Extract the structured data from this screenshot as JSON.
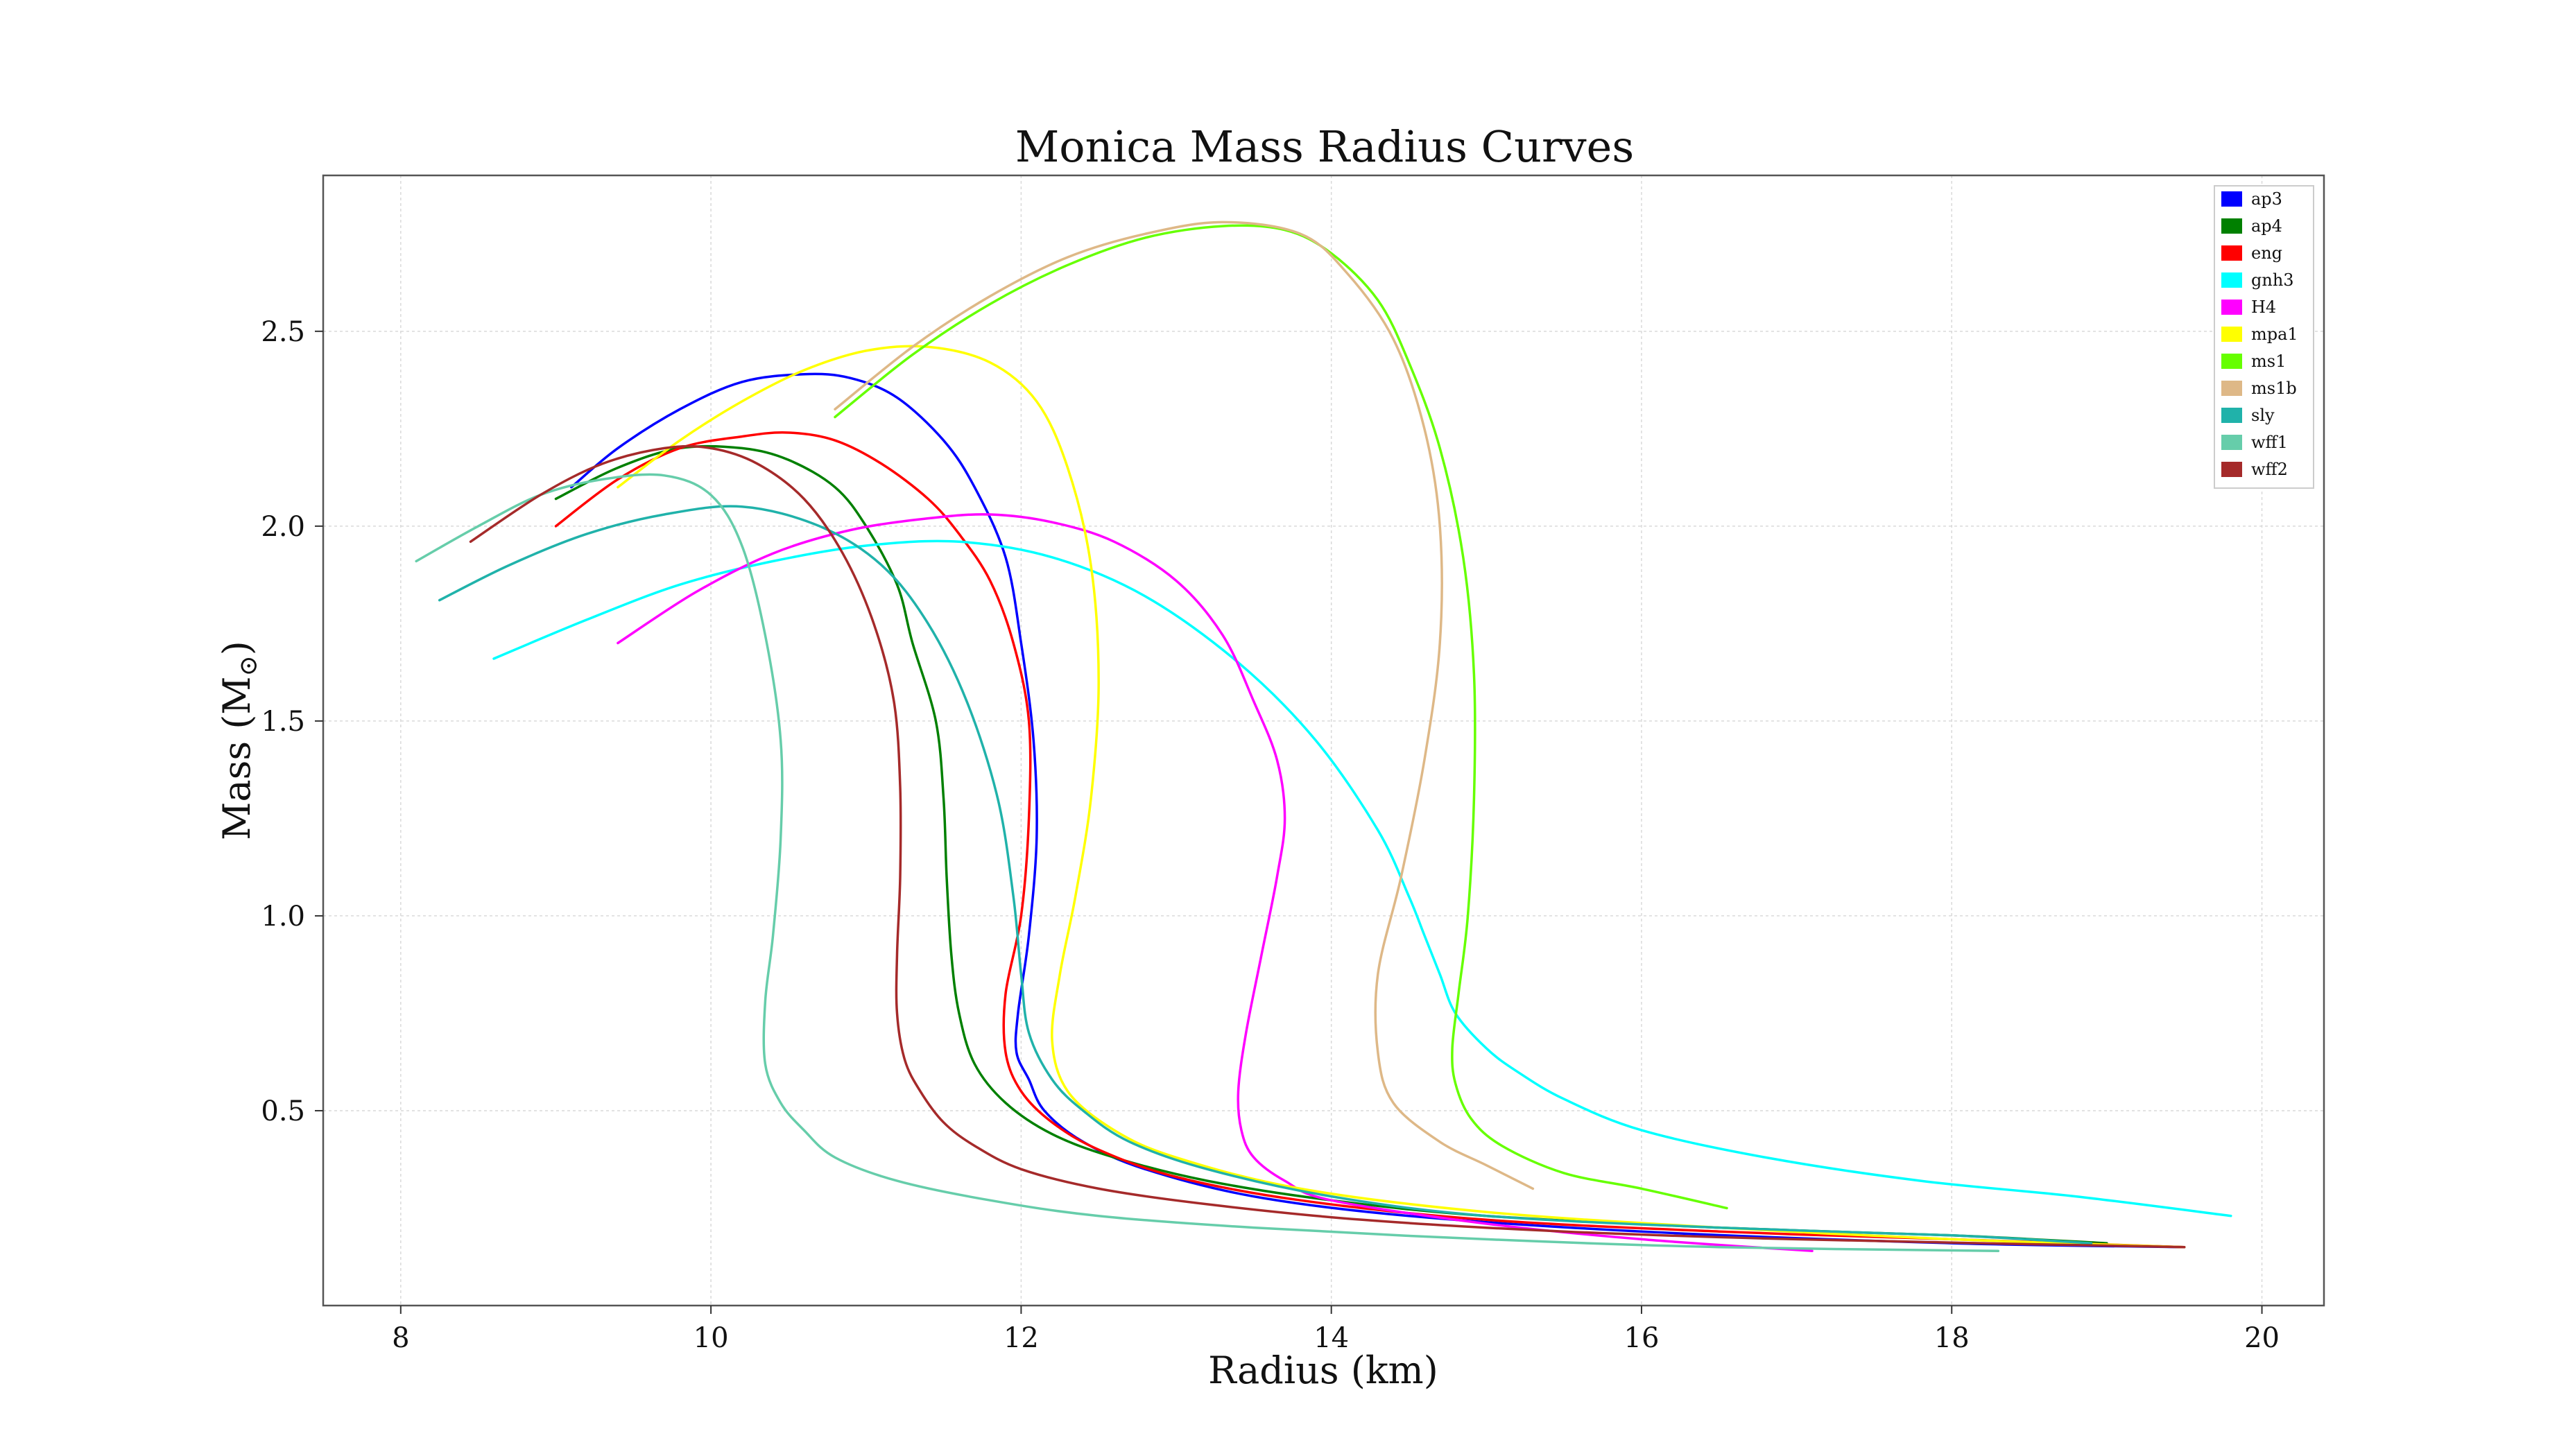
{
  "chart_data": {
    "type": "line",
    "title": "Monica Mass Radius Curves",
    "xlabel": "Radius (km)",
    "ylabel": "Mass (M",
    "ylabel_sub": "⊙",
    "ylabel_close": ")",
    "xlim": [
      7.5,
      20.4
    ],
    "ylim": [
      0.0,
      2.9
    ],
    "xticks": [
      8,
      10,
      12,
      14,
      16,
      18,
      20
    ],
    "yticks": [
      0.5,
      1.0,
      1.5,
      2.0,
      2.5
    ],
    "grid": true,
    "legend_position": "top-right",
    "series": [
      {
        "name": "ap3",
        "color": "#0000ff",
        "x": [
          9.1,
          9.4,
          9.8,
          10.2,
          10.6,
          10.9,
          11.2,
          11.5,
          11.7,
          11.9,
          12.0,
          12.08,
          12.1,
          12.05,
          11.98,
          11.97,
          12.05,
          12.15,
          12.4,
          12.8,
          13.5,
          14.5,
          16.0,
          18.0,
          19.5
        ],
        "y": [
          2.1,
          2.2,
          2.3,
          2.37,
          2.39,
          2.38,
          2.33,
          2.22,
          2.1,
          1.92,
          1.7,
          1.45,
          1.2,
          0.95,
          0.75,
          0.65,
          0.58,
          0.5,
          0.42,
          0.35,
          0.28,
          0.23,
          0.19,
          0.16,
          0.15
        ]
      },
      {
        "name": "ap4",
        "color": "#008000",
        "x": [
          9.0,
          9.4,
          9.8,
          10.2,
          10.5,
          10.8,
          11.0,
          11.2,
          11.3,
          11.45,
          11.5,
          11.52,
          11.55,
          11.6,
          11.7,
          11.9,
          12.2,
          12.6,
          13.2,
          14.0,
          15.0,
          16.5,
          18.0,
          19.0
        ],
        "y": [
          2.07,
          2.15,
          2.2,
          2.2,
          2.17,
          2.1,
          2.0,
          1.85,
          1.7,
          1.5,
          1.3,
          1.1,
          0.9,
          0.75,
          0.62,
          0.52,
          0.44,
          0.38,
          0.32,
          0.27,
          0.23,
          0.2,
          0.18,
          0.16
        ]
      },
      {
        "name": "eng",
        "color": "#ff0000",
        "x": [
          9.0,
          9.4,
          9.8,
          10.2,
          10.5,
          10.8,
          11.1,
          11.4,
          11.6,
          11.8,
          11.95,
          12.05,
          12.05,
          12.0,
          11.9,
          11.9,
          12.0,
          12.2,
          12.5,
          13.0,
          13.8,
          15.0,
          16.5,
          18.0,
          19.5
        ],
        "y": [
          2.0,
          2.12,
          2.2,
          2.23,
          2.24,
          2.22,
          2.16,
          2.07,
          1.98,
          1.86,
          1.7,
          1.5,
          1.25,
          1.0,
          0.8,
          0.65,
          0.55,
          0.47,
          0.4,
          0.33,
          0.27,
          0.22,
          0.19,
          0.17,
          0.15
        ]
      },
      {
        "name": "gnh3",
        "color": "#00ffff",
        "x": [
          8.6,
          9.2,
          9.8,
          10.4,
          11.0,
          11.6,
          12.2,
          12.8,
          13.4,
          13.9,
          14.3,
          14.5,
          14.6,
          14.7,
          14.8,
          15.0,
          15.2,
          15.5,
          16.0,
          16.8,
          17.8,
          18.8,
          19.8
        ],
        "y": [
          1.66,
          1.76,
          1.85,
          1.91,
          1.95,
          1.96,
          1.92,
          1.82,
          1.65,
          1.45,
          1.22,
          1.05,
          0.95,
          0.85,
          0.75,
          0.66,
          0.6,
          0.53,
          0.45,
          0.38,
          0.32,
          0.28,
          0.23
        ]
      },
      {
        "name": "H4",
        "color": "#ff00ff",
        "x": [
          9.4,
          9.9,
          10.4,
          10.9,
          11.4,
          11.8,
          12.2,
          12.6,
          13.0,
          13.3,
          13.5,
          13.65,
          13.7,
          13.65,
          13.55,
          13.45,
          13.4,
          13.42,
          13.5,
          13.7,
          14.0,
          15.0,
          16.0,
          17.1
        ],
        "y": [
          1.7,
          1.83,
          1.93,
          1.99,
          2.02,
          2.03,
          2.01,
          1.96,
          1.86,
          1.72,
          1.55,
          1.4,
          1.25,
          1.1,
          0.9,
          0.7,
          0.55,
          0.45,
          0.38,
          0.32,
          0.27,
          0.21,
          0.17,
          0.14
        ]
      },
      {
        "name": "mpa1",
        "color": "#ffff00",
        "x": [
          9.4,
          9.8,
          10.2,
          10.6,
          11.0,
          11.4,
          11.8,
          12.1,
          12.3,
          12.45,
          12.5,
          12.45,
          12.35,
          12.25,
          12.2,
          12.3,
          12.6,
          13.0,
          13.8,
          15.0,
          16.5,
          18.0,
          19.5
        ],
        "y": [
          2.1,
          2.22,
          2.32,
          2.4,
          2.45,
          2.46,
          2.42,
          2.32,
          2.15,
          1.9,
          1.6,
          1.3,
          1.05,
          0.85,
          0.68,
          0.55,
          0.45,
          0.38,
          0.3,
          0.24,
          0.2,
          0.17,
          0.15
        ]
      },
      {
        "name": "ms1",
        "color": "#66ff00",
        "x": [
          10.8,
          11.3,
          11.8,
          12.3,
          12.8,
          13.3,
          13.7,
          14.0,
          14.3,
          14.5,
          14.7,
          14.85,
          14.92,
          14.92,
          14.88,
          14.82,
          14.78,
          14.8,
          14.9,
          15.1,
          15.5,
          16.0,
          16.55
        ],
        "y": [
          2.28,
          2.44,
          2.57,
          2.67,
          2.74,
          2.77,
          2.76,
          2.7,
          2.58,
          2.42,
          2.2,
          1.92,
          1.62,
          1.3,
          1.0,
          0.8,
          0.66,
          0.57,
          0.48,
          0.41,
          0.34,
          0.3,
          0.25
        ]
      },
      {
        "name": "ms1b",
        "color": "#deb887",
        "x": [
          10.8,
          11.3,
          11.8,
          12.3,
          12.8,
          13.3,
          13.8,
          14.1,
          14.4,
          14.6,
          14.7,
          14.7,
          14.6,
          14.45,
          14.3,
          14.3,
          14.4,
          14.7,
          15.0,
          15.3
        ],
        "y": [
          2.3,
          2.46,
          2.59,
          2.69,
          2.75,
          2.78,
          2.75,
          2.65,
          2.48,
          2.25,
          2.0,
          1.7,
          1.4,
          1.1,
          0.85,
          0.65,
          0.52,
          0.42,
          0.36,
          0.3
        ]
      },
      {
        "name": "sly",
        "color": "#20b2aa",
        "x": [
          8.25,
          8.7,
          9.2,
          9.7,
          10.2,
          10.7,
          11.1,
          11.4,
          11.65,
          11.85,
          11.95,
          12.0,
          12.05,
          12.2,
          12.4,
          12.7,
          13.2,
          14.0,
          15.0,
          16.5,
          18.0,
          18.9
        ],
        "y": [
          1.81,
          1.9,
          1.98,
          2.03,
          2.05,
          2.0,
          1.9,
          1.75,
          1.55,
          1.3,
          1.05,
          0.85,
          0.7,
          0.58,
          0.5,
          0.42,
          0.35,
          0.28,
          0.23,
          0.2,
          0.18,
          0.16
        ]
      },
      {
        "name": "wff1",
        "color": "#66cdaa",
        "x": [
          8.1,
          8.5,
          8.9,
          9.3,
          9.7,
          10.0,
          10.2,
          10.35,
          10.45,
          10.45,
          10.4,
          10.35,
          10.35,
          10.45,
          10.6,
          10.8,
          11.2,
          11.8,
          12.5,
          13.5,
          15.0,
          16.5,
          18.3
        ],
        "y": [
          1.91,
          2.0,
          2.08,
          2.12,
          2.13,
          2.08,
          1.95,
          1.72,
          1.45,
          1.2,
          0.95,
          0.78,
          0.62,
          0.52,
          0.45,
          0.38,
          0.32,
          0.27,
          0.23,
          0.2,
          0.17,
          0.15,
          0.14
        ]
      },
      {
        "name": "wff2",
        "color": "#a52a2a",
        "x": [
          8.45,
          8.9,
          9.3,
          9.7,
          10.0,
          10.3,
          10.6,
          10.85,
          11.05,
          11.18,
          11.22,
          11.22,
          11.2,
          11.2,
          11.25,
          11.35,
          11.5,
          11.7,
          12.0,
          12.5,
          13.2,
          14.2,
          15.5,
          17.0,
          19.5
        ],
        "y": [
          1.96,
          2.08,
          2.16,
          2.2,
          2.2,
          2.16,
          2.07,
          1.93,
          1.75,
          1.55,
          1.33,
          1.1,
          0.9,
          0.75,
          0.63,
          0.55,
          0.47,
          0.41,
          0.35,
          0.3,
          0.26,
          0.22,
          0.19,
          0.17,
          0.15
        ]
      }
    ]
  }
}
